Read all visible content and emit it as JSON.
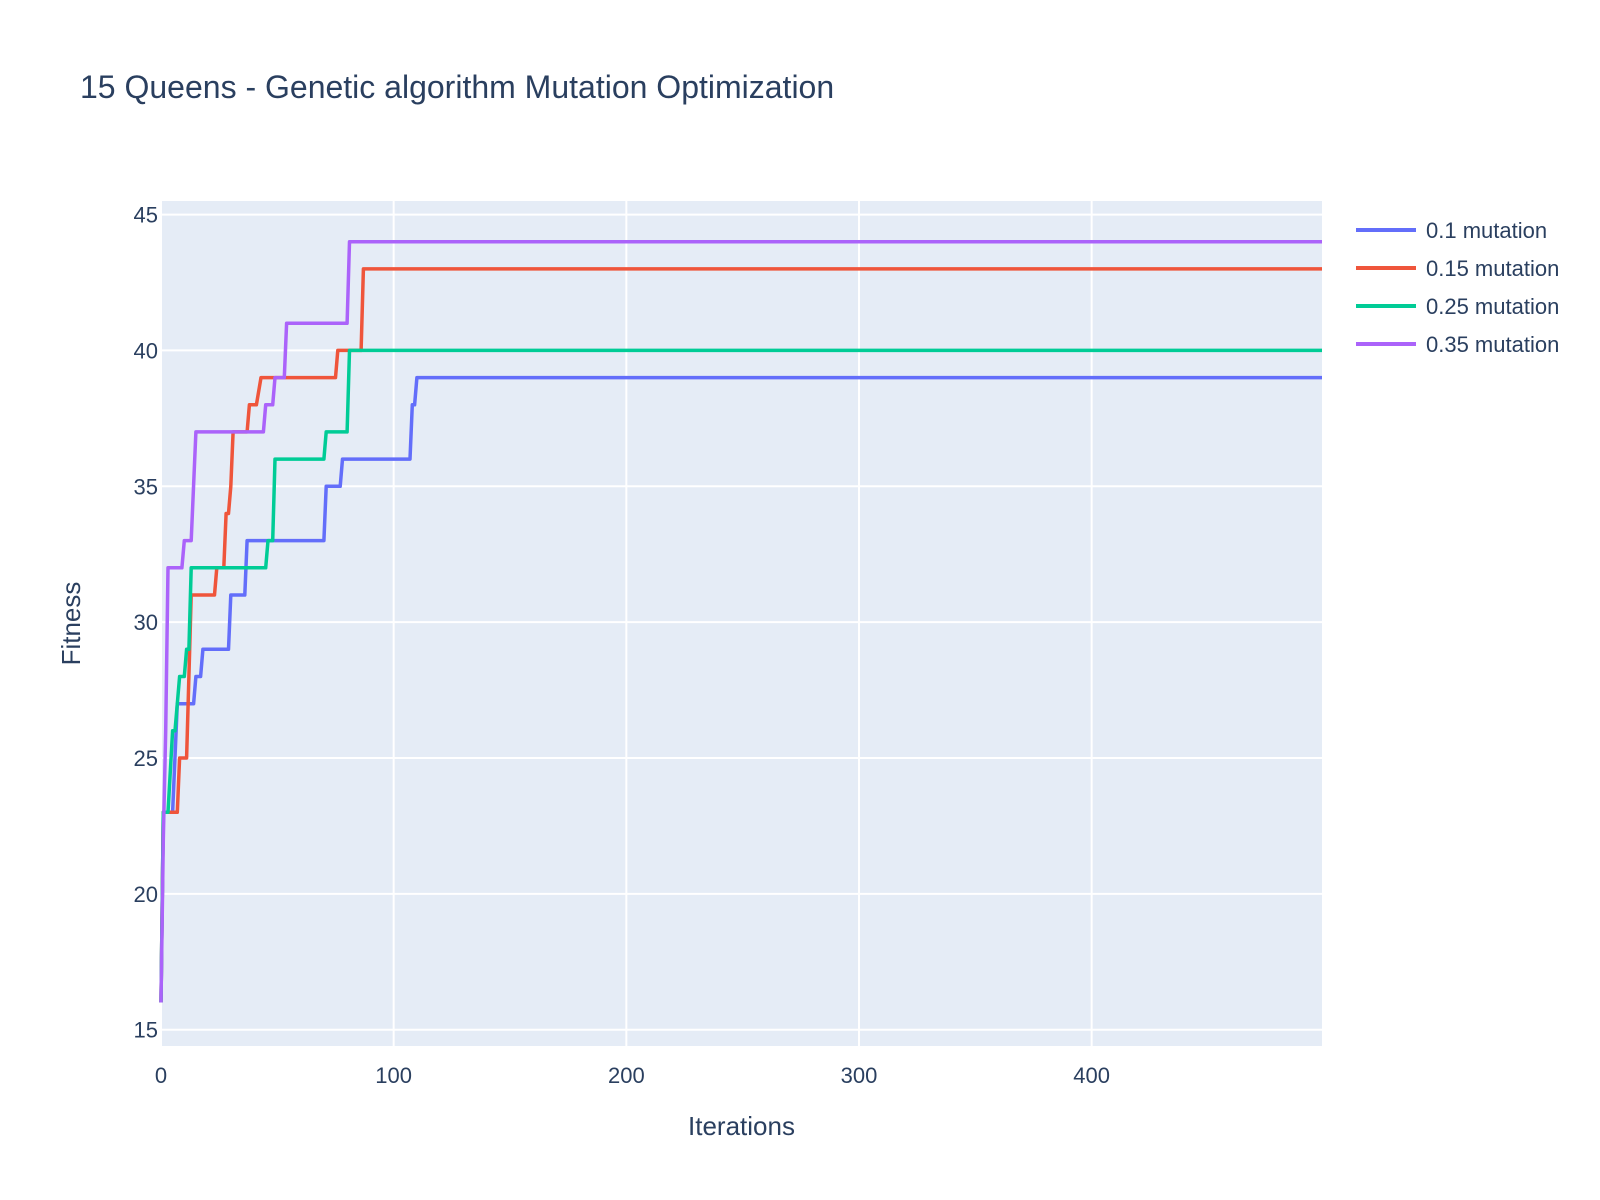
{
  "chart_data": {
    "type": "line",
    "title": "15 Queens - Genetic algorithm Mutation Optimization",
    "xlabel": "Iterations",
    "ylabel": "Fitness",
    "xlim": [
      0,
      499
    ],
    "ylim": [
      14.4,
      45.5
    ],
    "x_ticks": [
      0,
      100,
      200,
      300,
      400
    ],
    "y_ticks": [
      15,
      20,
      25,
      30,
      35,
      40,
      45
    ],
    "grid": true,
    "legend_position": "top-right",
    "plot_bgcolor": "#e5ecf6",
    "series": [
      {
        "name": "0.1 mutation",
        "color": "#636efa",
        "points": [
          [
            0,
            16
          ],
          [
            1,
            23
          ],
          [
            4,
            23
          ],
          [
            5,
            23
          ],
          [
            7,
            27
          ],
          [
            14,
            27
          ],
          [
            15,
            28
          ],
          [
            17,
            28
          ],
          [
            18,
            29
          ],
          [
            29,
            29
          ],
          [
            30,
            31
          ],
          [
            36,
            31
          ],
          [
            37,
            33
          ],
          [
            70,
            33
          ],
          [
            71,
            35
          ],
          [
            77,
            35
          ],
          [
            78,
            36
          ],
          [
            107,
            36
          ],
          [
            108,
            38
          ],
          [
            109,
            38
          ],
          [
            110,
            39
          ],
          [
            499,
            39
          ]
        ]
      },
      {
        "name": "0.15 mutation",
        "color": "#ef553b",
        "points": [
          [
            0,
            16
          ],
          [
            1,
            23
          ],
          [
            7,
            23
          ],
          [
            8,
            25
          ],
          [
            11,
            25
          ],
          [
            13,
            31
          ],
          [
            23,
            31
          ],
          [
            24,
            32
          ],
          [
            27,
            32
          ],
          [
            28,
            34
          ],
          [
            29,
            34
          ],
          [
            30,
            35
          ],
          [
            31,
            37
          ],
          [
            37,
            37
          ],
          [
            38,
            38
          ],
          [
            41,
            38
          ],
          [
            43,
            39
          ],
          [
            75,
            39
          ],
          [
            76,
            40
          ],
          [
            80,
            40
          ],
          [
            81,
            40
          ],
          [
            86,
            40
          ],
          [
            87,
            43
          ],
          [
            499,
            43
          ]
        ]
      },
      {
        "name": "0.25 mutation",
        "color": "#00cc96",
        "points": [
          [
            0,
            16
          ],
          [
            1,
            23
          ],
          [
            3,
            23
          ],
          [
            5,
            26
          ],
          [
            6,
            26
          ],
          [
            8,
            28
          ],
          [
            10,
            28
          ],
          [
            11,
            29
          ],
          [
            12,
            29
          ],
          [
            13,
            32
          ],
          [
            45,
            32
          ],
          [
            46,
            33
          ],
          [
            48,
            33
          ],
          [
            49,
            36
          ],
          [
            70,
            36
          ],
          [
            71,
            37
          ],
          [
            80,
            37
          ],
          [
            81,
            40
          ],
          [
            499,
            40
          ]
        ]
      },
      {
        "name": "0.35 mutation",
        "color": "#ab63fa",
        "points": [
          [
            0,
            16
          ],
          [
            1,
            22
          ],
          [
            2,
            26
          ],
          [
            3,
            32
          ],
          [
            9,
            32
          ],
          [
            10,
            33
          ],
          [
            13,
            33
          ],
          [
            15,
            37
          ],
          [
            44,
            37
          ],
          [
            45,
            38
          ],
          [
            48,
            38
          ],
          [
            49,
            39
          ],
          [
            53,
            39
          ],
          [
            54,
            41
          ],
          [
            80,
            41
          ],
          [
            81,
            44
          ],
          [
            499,
            44
          ]
        ]
      }
    ]
  }
}
